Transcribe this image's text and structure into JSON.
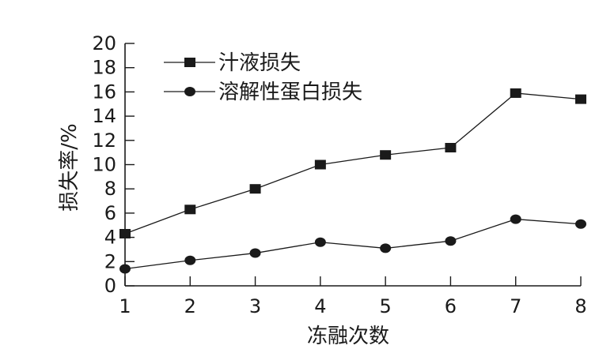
{
  "chart_data": {
    "type": "line",
    "xlabel": "冻融次数",
    "ylabel": "损失率/%",
    "x": [
      1,
      2,
      3,
      4,
      5,
      6,
      7,
      8
    ],
    "xlim": [
      1,
      8
    ],
    "ylim": [
      0,
      20
    ],
    "yticks": [
      0,
      2,
      4,
      6,
      8,
      10,
      12,
      14,
      16,
      18,
      20
    ],
    "grid": false,
    "legend_position": "top-left",
    "series": [
      {
        "name": "汁液损失",
        "marker": "square",
        "values": [
          4.3,
          6.3,
          8.0,
          10.0,
          10.8,
          11.4,
          15.9,
          15.4
        ]
      },
      {
        "name": "溶解性蛋白损失",
        "marker": "circle",
        "values": [
          1.4,
          2.1,
          2.7,
          3.6,
          3.1,
          3.7,
          5.5,
          5.1
        ]
      }
    ]
  }
}
